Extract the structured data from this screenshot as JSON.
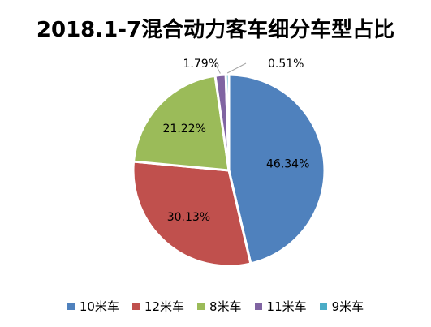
{
  "chart_data": {
    "type": "pie",
    "title": "2018.1-7混合动力客车细分车型占比",
    "categories": [
      "10米车",
      "12米车",
      "8米车",
      "11米车",
      "9米车"
    ],
    "values": [
      46.34,
      30.13,
      21.22,
      1.79,
      0.51
    ],
    "labels": [
      "46.34%",
      "30.13%",
      "21.22%",
      "1.79%",
      "0.51%"
    ],
    "colors": [
      "#4F81BD",
      "#C0504D",
      "#9BBB59",
      "#8064A2",
      "#4BACC6"
    ],
    "legend_position": "bottom"
  }
}
